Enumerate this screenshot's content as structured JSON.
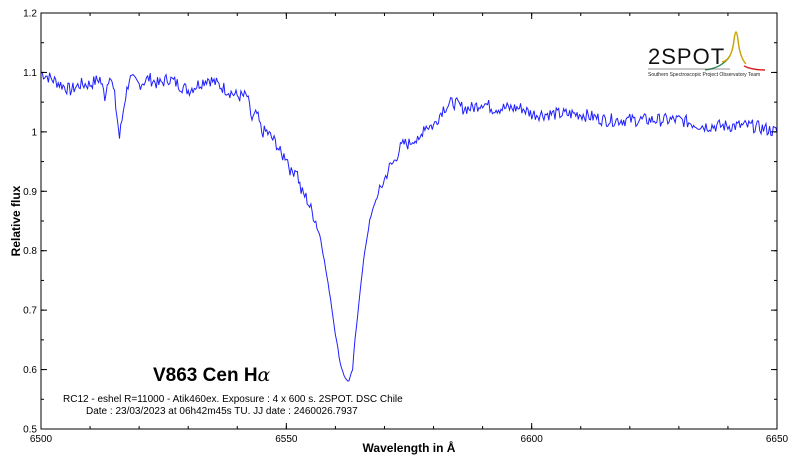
{
  "chart_data": {
    "type": "line",
    "xlabel": "Wavelength in Å",
    "ylabel": "Relative flux",
    "xlim": [
      6500,
      6650
    ],
    "ylim": [
      0.5,
      1.2
    ],
    "xticks": [
      "6500",
      "6550",
      "6600",
      "6650"
    ],
    "yticks": [
      "0.5",
      "0.6",
      "0.7",
      "0.8",
      "0.9",
      "1",
      "1.1",
      "1.2"
    ],
    "grid": false,
    "line_color": "#1f1fff",
    "series": [
      {
        "x": [
          6500,
          6502,
          6504,
          6506,
          6508,
          6510,
          6512,
          6513,
          6514,
          6515,
          6516,
          6517,
          6518,
          6520,
          6522,
          6524,
          6526,
          6528,
          6530,
          6532,
          6534,
          6536,
          6538,
          6540,
          6542,
          6543,
          6544,
          6545,
          6546,
          6547,
          6548,
          6549,
          6550,
          6551,
          6552,
          6553,
          6554,
          6555,
          6556,
          6557,
          6558,
          6559,
          6560,
          6561,
          6562,
          6562.8,
          6563.5,
          6564,
          6565,
          6566,
          6567,
          6568,
          6569,
          6570,
          6571,
          6572,
          6573,
          6574,
          6575,
          6576,
          6577,
          6578,
          6580,
          6582,
          6584,
          6586,
          6588,
          6590,
          6592,
          6595,
          6598,
          6600,
          6603,
          6606,
          6610,
          6615,
          6620,
          6625,
          6630,
          6635,
          6640,
          6645,
          6650
        ],
        "y": [
          1.1,
          1.09,
          1.08,
          1.07,
          1.08,
          1.08,
          1.09,
          1.06,
          1.1,
          1.06,
          0.99,
          1.05,
          1.09,
          1.08,
          1.09,
          1.08,
          1.09,
          1.08,
          1.07,
          1.08,
          1.09,
          1.08,
          1.07,
          1.06,
          1.06,
          1.02,
          1.03,
          1.0,
          1.0,
          0.99,
          0.98,
          0.96,
          0.96,
          0.93,
          0.94,
          0.9,
          0.89,
          0.87,
          0.85,
          0.82,
          0.77,
          0.72,
          0.66,
          0.61,
          0.585,
          0.58,
          0.6,
          0.65,
          0.73,
          0.8,
          0.85,
          0.88,
          0.9,
          0.92,
          0.94,
          0.95,
          0.97,
          0.98,
          0.98,
          0.99,
          0.98,
          1.01,
          1.01,
          1.04,
          1.05,
          1.04,
          1.04,
          1.05,
          1.04,
          1.04,
          1.04,
          1.03,
          1.03,
          1.03,
          1.03,
          1.02,
          1.02,
          1.02,
          1.02,
          1.01,
          1.01,
          1.01,
          1.0
        ]
      }
    ]
  },
  "annotation": {
    "title": "V863 Cen H",
    "title_symbol": "α",
    "line1": "RC12 - eshel R=11000 - Atik460ex. Exposure : 4 x 600 s. 2SPOT. DSC Chile",
    "line2": "Date : 23/03/2023 at 06h42m45s TU. JJ date : 2460026.7937"
  },
  "logo": {
    "name": "2SPOT",
    "subtitle": "Southern Spectroscopic Project Observatory Team",
    "colors": [
      "#c8a400",
      "#2e8b57",
      "#d62020"
    ]
  }
}
